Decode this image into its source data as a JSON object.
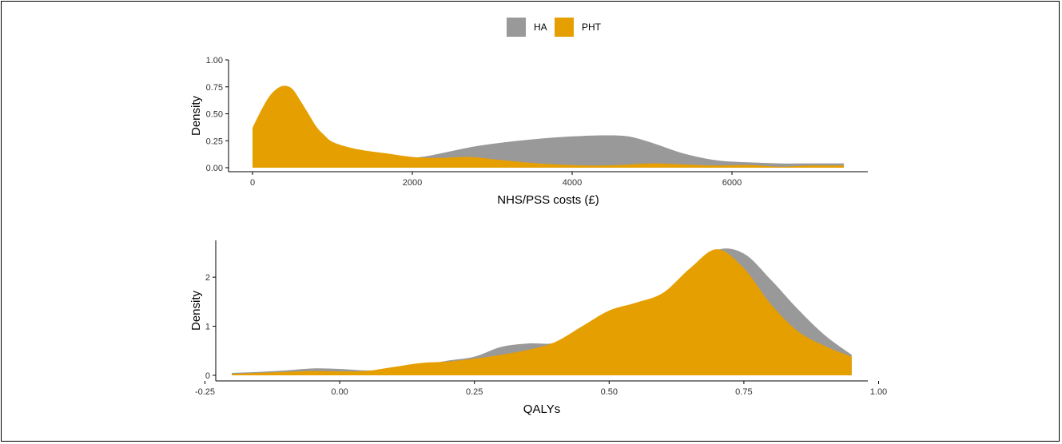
{
  "colors": {
    "HA": "#999999",
    "PHT": "#E69F00",
    "axis": "#000000"
  },
  "legend": [
    {
      "key": "HA",
      "label": "HA"
    },
    {
      "key": "PHT",
      "label": "PHT"
    }
  ],
  "chart_data": [
    {
      "type": "area",
      "subtype": "density",
      "xlabel": "NHS/PSS costs (£)",
      "ylabel": "Density",
      "xlim": [
        -300,
        7700
      ],
      "ylim": [
        0,
        1.0
      ],
      "x_ticks": [
        {
          "v": 0,
          "label": "0"
        },
        {
          "v": 2000,
          "label": "2000"
        },
        {
          "v": 4000,
          "label": "4000"
        },
        {
          "v": 6000,
          "label": "6000"
        }
      ],
      "y_ticks": [
        {
          "v": 0,
          "label": "0.00"
        },
        {
          "v": 0.25,
          "label": "0.25"
        },
        {
          "v": 0.5,
          "label": "0.50"
        },
        {
          "v": 0.75,
          "label": "0.75"
        },
        {
          "v": 1.0,
          "label": "1.00"
        }
      ],
      "y_scale_note": "values in 1e-3 per £",
      "series": [
        {
          "name": "HA",
          "x": [
            0,
            200,
            600,
            1000,
            1400,
            1800,
            2000,
            2200,
            2400,
            2800,
            3200,
            3600,
            4000,
            4400,
            4700,
            5000,
            5400,
            5800,
            6200,
            6600,
            7000,
            7400
          ],
          "y": [
            0.0,
            0.005,
            0.01,
            0.02,
            0.04,
            0.07,
            0.09,
            0.11,
            0.14,
            0.2,
            0.24,
            0.27,
            0.29,
            0.3,
            0.29,
            0.23,
            0.13,
            0.07,
            0.05,
            0.04,
            0.04,
            0.04
          ]
        },
        {
          "name": "PHT",
          "x": [
            0,
            100,
            200,
            300,
            400,
            500,
            600,
            700,
            800,
            900,
            1000,
            1200,
            1400,
            1700,
            2000,
            2300,
            2700,
            3000,
            3400,
            3800,
            4200,
            4600,
            5000,
            5400,
            5800,
            6200,
            6600,
            7000,
            7400
          ],
          "y": [
            0.37,
            0.52,
            0.65,
            0.73,
            0.76,
            0.73,
            0.62,
            0.5,
            0.38,
            0.3,
            0.24,
            0.19,
            0.16,
            0.13,
            0.1,
            0.09,
            0.1,
            0.08,
            0.05,
            0.03,
            0.02,
            0.025,
            0.04,
            0.03,
            0.02,
            0.025,
            0.01,
            0.02,
            0.02
          ]
        }
      ]
    },
    {
      "type": "area",
      "subtype": "density",
      "xlabel": "QALYs",
      "ylabel": "Density",
      "xlim": [
        -0.23,
        0.98
      ],
      "ylim": [
        0,
        2.75
      ],
      "x_ticks": [
        {
          "v": -0.25,
          "label": "-0.25"
        },
        {
          "v": 0,
          "label": "0.00"
        },
        {
          "v": 0.25,
          "label": "0.25"
        },
        {
          "v": 0.5,
          "label": "0.50"
        },
        {
          "v": 0.75,
          "label": "0.75"
        },
        {
          "v": 1.0,
          "label": "1.00"
        }
      ],
      "y_ticks": [
        {
          "v": 0,
          "label": "0"
        },
        {
          "v": 1,
          "label": "1"
        },
        {
          "v": 2,
          "label": "2"
        }
      ],
      "series": [
        {
          "name": "HA",
          "x": [
            -0.2,
            -0.15,
            -0.1,
            -0.05,
            0.0,
            0.05,
            0.1,
            0.15,
            0.2,
            0.25,
            0.3,
            0.35,
            0.4,
            0.45,
            0.5,
            0.55,
            0.6,
            0.65,
            0.7,
            0.75,
            0.8,
            0.85,
            0.9,
            0.95
          ],
          "y": [
            0.05,
            0.07,
            0.1,
            0.14,
            0.13,
            0.1,
            0.12,
            0.2,
            0.3,
            0.38,
            0.58,
            0.65,
            0.66,
            0.9,
            1.25,
            1.45,
            1.62,
            2.05,
            2.55,
            2.48,
            1.95,
            1.35,
            0.82,
            0.42
          ]
        },
        {
          "name": "PHT",
          "x": [
            -0.2,
            -0.15,
            -0.1,
            -0.05,
            0.0,
            0.05,
            0.1,
            0.15,
            0.2,
            0.25,
            0.3,
            0.35,
            0.4,
            0.45,
            0.5,
            0.55,
            0.6,
            0.65,
            0.7,
            0.75,
            0.8,
            0.85,
            0.9,
            0.95
          ],
          "y": [
            0.03,
            0.05,
            0.07,
            0.09,
            0.08,
            0.09,
            0.17,
            0.25,
            0.28,
            0.34,
            0.42,
            0.52,
            0.68,
            1.0,
            1.32,
            1.48,
            1.68,
            2.18,
            2.57,
            2.18,
            1.45,
            0.9,
            0.6,
            0.38
          ]
        }
      ]
    }
  ]
}
